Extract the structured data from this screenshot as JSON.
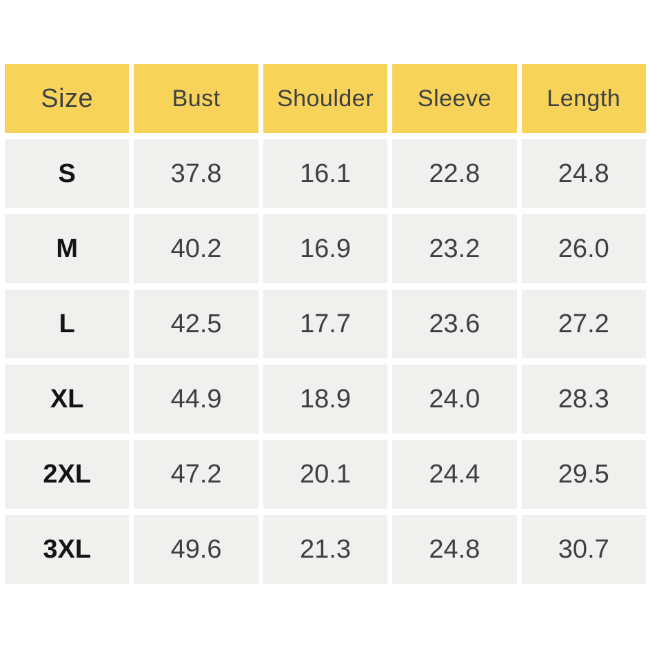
{
  "colors": {
    "header_bg": "#f8d35a",
    "cell_bg": "#f0f0ef",
    "header_text": "#3e4043",
    "value_text": "#3f3f41",
    "size_text": "#141414",
    "page_bg": "#ffffff"
  },
  "table": {
    "headers": [
      "Size",
      "Bust",
      "Shoulder",
      "Sleeve",
      "Length"
    ],
    "rows": [
      [
        "S",
        "37.8",
        "16.1",
        "22.8",
        "24.8"
      ],
      [
        "M",
        "40.2",
        "16.9",
        "23.2",
        "26.0"
      ],
      [
        "L",
        "42.5",
        "17.7",
        "23.6",
        "27.2"
      ],
      [
        "XL",
        "44.9",
        "18.9",
        "24.0",
        "28.3"
      ],
      [
        "2XL",
        "47.2",
        "20.1",
        "24.4",
        "29.5"
      ],
      [
        "3XL",
        "49.6",
        "21.3",
        "24.8",
        "30.7"
      ]
    ]
  },
  "chart_data": {
    "type": "table",
    "columns": [
      "Size",
      "Bust",
      "Shoulder",
      "Sleeve",
      "Length"
    ],
    "rows": [
      {
        "size": "S",
        "bust": 37.8,
        "shoulder": 16.1,
        "sleeve": 22.8,
        "length": 24.8
      },
      {
        "size": "M",
        "bust": 40.2,
        "shoulder": 16.9,
        "sleeve": 23.2,
        "length": 26.0
      },
      {
        "size": "L",
        "bust": 42.5,
        "shoulder": 17.7,
        "sleeve": 23.6,
        "length": 27.2
      },
      {
        "size": "XL",
        "bust": 44.9,
        "shoulder": 18.9,
        "sleeve": 24.0,
        "length": 28.3
      },
      {
        "size": "2XL",
        "bust": 47.2,
        "shoulder": 20.1,
        "sleeve": 24.4,
        "length": 29.5
      },
      {
        "size": "3XL",
        "bust": 49.6,
        "shoulder": 21.3,
        "sleeve": 24.8,
        "length": 30.7
      }
    ],
    "layout": {
      "header_row_highlighted": true,
      "grid": "white-gutters",
      "legend": "none"
    }
  }
}
